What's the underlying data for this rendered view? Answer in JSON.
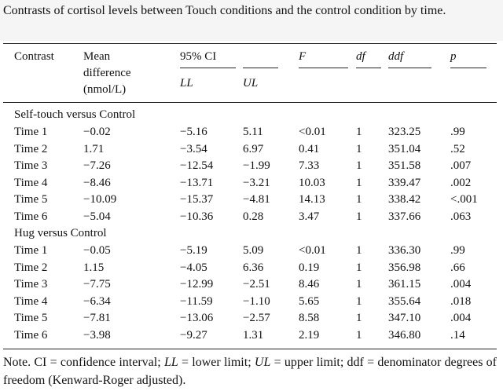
{
  "caption": "Contrasts of cortisol levels between Touch conditions and the control condition by time.",
  "headers": {
    "contrast": "Contrast",
    "mean_1": "Mean",
    "mean_2": "difference",
    "mean_3": "(nmol/L)",
    "ci": "95% CI",
    "ll": "LL",
    "ul": "UL",
    "f": "F",
    "df": "df",
    "ddf": "ddf",
    "p": "p"
  },
  "groups": [
    {
      "label": "Self-touch versus Control",
      "rows": [
        {
          "time": "Time 1",
          "mean": "−0.02",
          "ll": "−5.16",
          "ul": "5.11",
          "f": "<0.01",
          "df": "1",
          "ddf": "323.25",
          "p": ".99"
        },
        {
          "time": "Time 2",
          "mean": "1.71",
          "ll": "−3.54",
          "ul": "6.97",
          "f": "0.41",
          "df": "1",
          "ddf": "351.04",
          "p": ".52"
        },
        {
          "time": "Time 3",
          "mean": "−7.26",
          "ll": "−12.54",
          "ul": "−1.99",
          "f": "7.33",
          "df": "1",
          "ddf": "351.58",
          "p": ".007"
        },
        {
          "time": "Time 4",
          "mean": "−8.46",
          "ll": "−13.71",
          "ul": "−3.21",
          "f": "10.03",
          "df": "1",
          "ddf": "339.47",
          "p": ".002"
        },
        {
          "time": "Time 5",
          "mean": "−10.09",
          "ll": "−15.37",
          "ul": "−4.81",
          "f": "14.13",
          "df": "1",
          "ddf": "338.42",
          "p": "<.001"
        },
        {
          "time": "Time 6",
          "mean": "−5.04",
          "ll": "−10.36",
          "ul": "0.28",
          "f": "3.47",
          "df": "1",
          "ddf": "337.66",
          "p": ".063"
        }
      ]
    },
    {
      "label": "Hug versus Control",
      "rows": [
        {
          "time": "Time 1",
          "mean": "−0.05",
          "ll": "−5.19",
          "ul": "5.09",
          "f": "<0.01",
          "df": "1",
          "ddf": "336.30",
          "p": ".99"
        },
        {
          "time": "Time 2",
          "mean": "1.15",
          "ll": "−4.05",
          "ul": "6.36",
          "f": "0.19",
          "df": "1",
          "ddf": "356.98",
          "p": ".66"
        },
        {
          "time": "Time 3",
          "mean": "−7.75",
          "ll": "−12.99",
          "ul": "−2.51",
          "f": "8.46",
          "df": "1",
          "ddf": "361.15",
          "p": ".004"
        },
        {
          "time": "Time 4",
          "mean": "−6.34",
          "ll": "−11.59",
          "ul": "−1.10",
          "f": "5.65",
          "df": "1",
          "ddf": "355.64",
          "p": ".018"
        },
        {
          "time": "Time 5",
          "mean": "−7.81",
          "ll": "−13.06",
          "ul": "−2.57",
          "f": "8.58",
          "df": "1",
          "ddf": "347.10",
          "p": ".004"
        },
        {
          "time": "Time 6",
          "mean": "−3.98",
          "ll": "−9.27",
          "ul": "1.31",
          "f": "2.19",
          "df": "1",
          "ddf": "346.80",
          "p": ".14"
        }
      ]
    }
  ],
  "note": "Note. CI = confidence interval; LL = lower limit; UL = upper limit; ddf = denominator degrees of freedom (Kenward-Roger adjusted).",
  "note_parts": {
    "a": "Note. CI = confidence interval; ",
    "b": "LL",
    "c": " = lower limit; ",
    "d": "UL",
    "e": " = upper limit; ddf = de­nominator degrees of freedom (Kenward-Roger adjusted)."
  }
}
